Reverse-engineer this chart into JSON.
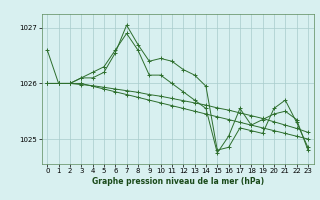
{
  "background_color": "#d8f0f0",
  "grid_color": "#a8cccc",
  "line_color": "#2d6e2d",
  "marker_color": "#2d6e2d",
  "title": "Graphe pression niveau de la mer (hPa)",
  "ylim": [
    1024.55,
    1027.25
  ],
  "yticks": [
    1025,
    1026,
    1027
  ],
  "xlim": [
    -0.5,
    23.5
  ],
  "xticks": [
    0,
    1,
    2,
    3,
    4,
    5,
    6,
    7,
    8,
    9,
    10,
    11,
    12,
    13,
    14,
    15,
    16,
    17,
    18,
    19,
    20,
    21,
    22,
    23
  ],
  "series": [
    [
      1026.6,
      1026.0,
      1026.0,
      1026.1,
      1026.1,
      1026.2,
      1026.55,
      1027.05,
      1026.7,
      1026.4,
      1026.45,
      1026.4,
      1026.25,
      1026.15,
      1025.95,
      1024.8,
      1024.85,
      1025.2,
      1025.15,
      1025.1,
      1025.55,
      1025.7,
      1025.3,
      1024.85
    ],
    [
      1026.0,
      1026.0,
      1026.0,
      1026.0,
      1025.95,
      1025.9,
      1025.85,
      1025.8,
      1025.75,
      1025.7,
      1025.65,
      1025.6,
      1025.55,
      1025.5,
      1025.45,
      1025.4,
      1025.35,
      1025.3,
      1025.25,
      1025.2,
      1025.15,
      1025.1,
      1025.05,
      1025.0
    ],
    [
      1026.0,
      1026.0,
      1026.0,
      1025.98,
      1025.96,
      1025.93,
      1025.9,
      1025.87,
      1025.84,
      1025.8,
      1025.77,
      1025.73,
      1025.69,
      1025.65,
      1025.61,
      1025.56,
      1025.52,
      1025.47,
      1025.42,
      1025.37,
      1025.31,
      1025.25,
      1025.19,
      1025.12
    ],
    [
      1026.0,
      1026.0,
      1026.0,
      1026.1,
      1026.2,
      1026.3,
      1026.6,
      1026.9,
      1026.6,
      1026.15,
      1026.15,
      1026.0,
      1025.85,
      1025.7,
      1025.55,
      1024.75,
      1025.05,
      1025.55,
      1025.25,
      1025.35,
      1025.45,
      1025.5,
      1025.35,
      1024.8
    ]
  ]
}
